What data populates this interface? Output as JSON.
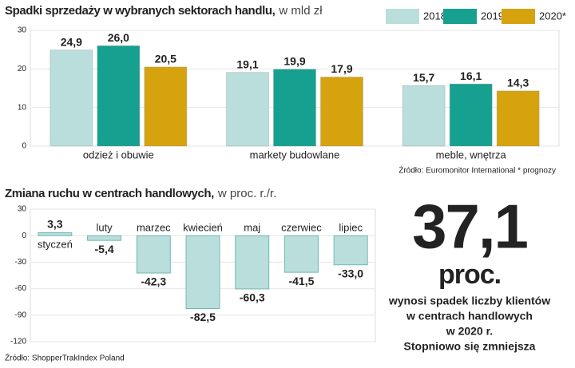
{
  "chart_data": [
    {
      "type": "grouped-bar",
      "title": "Spadki sprzedaży w wybranych sektorach handlu,",
      "unit": "w mld zł",
      "categories": [
        "odzież i obuwie",
        "markety budowlane",
        "meble, wnętrza"
      ],
      "series": [
        {
          "name": "2018",
          "color": "#b9dedb",
          "values": [
            24.9,
            19.1,
            15.7
          ],
          "value_labels": [
            "24,9",
            "19,1",
            "15,7"
          ]
        },
        {
          "name": "2019",
          "color": "#16a08f",
          "values": [
            26.0,
            19.9,
            16.1
          ],
          "value_labels": [
            "26,0",
            "19,9",
            "16,1"
          ]
        },
        {
          "name": "2020*",
          "color": "#d6a30f",
          "values": [
            20.5,
            17.9,
            14.3
          ],
          "value_labels": [
            "20,5",
            "17,9",
            "14,3"
          ]
        }
      ],
      "ylim": [
        0,
        30
      ],
      "yticks": [
        0,
        10,
        20,
        30
      ],
      "legend": "top-right",
      "source": "Źródło: Euromonitor International  * prognozy"
    },
    {
      "type": "bar",
      "title": "Zmiana ruchu w centrach handlowych,",
      "unit": "w proc. r./r.",
      "categories": [
        "styczeń",
        "luty",
        "marzec",
        "kwiecień",
        "maj",
        "czerwiec",
        "lipiec"
      ],
      "values": [
        3.3,
        -5.4,
        -42.3,
        -82.5,
        -60.3,
        -41.5,
        -33.0
      ],
      "value_labels": [
        "3,3",
        "-5,4",
        "-42,3",
        "-82,5",
        "-60,3",
        "-41,5",
        "-33,0"
      ],
      "color": "#b9dedb",
      "ylim": [
        -120,
        30
      ],
      "yticks": [
        -120,
        -90,
        -60,
        -30,
        0,
        30
      ],
      "source": "Źródło: ShopperTrakIndex Poland"
    }
  ],
  "callout": {
    "number": "37,1",
    "unit": "proc.",
    "text": [
      "wynosi spadek liczby klientów",
      "w centrach handlowych",
      "w 2020 r.",
      "Stopniowo się zmniejsza"
    ]
  }
}
